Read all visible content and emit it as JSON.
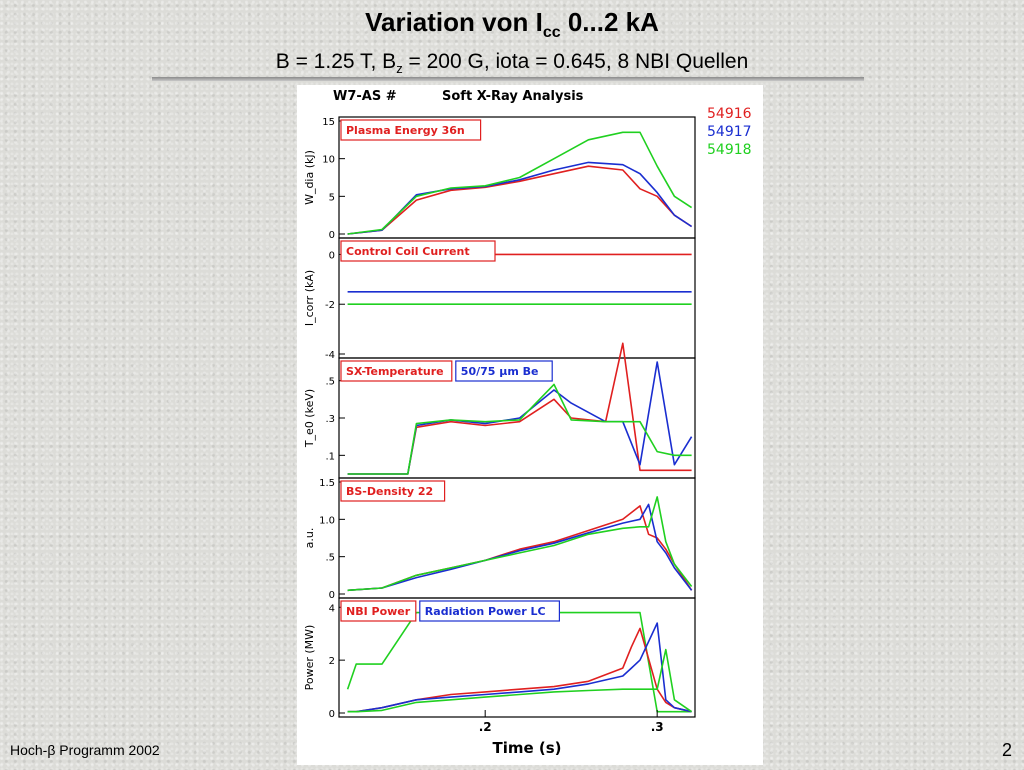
{
  "slide": {
    "title_main": "Variation von I",
    "title_sub": "cc",
    "title_end": " 0...2 kA",
    "subtitle_a": "B = 1.25 T, B",
    "subtitle_sub": "z",
    "subtitle_b": " = 200 G, iota = 0.645, 8 NBI Quellen",
    "footer_left": "Hoch-β Programm 2002",
    "page_number": "2"
  },
  "figure": {
    "header_left": "W7-AS #",
    "header_right": "Soft X-Ray Analysis",
    "xlabel": "Time (s)",
    "xticks": [
      ".2",
      ".3"
    ],
    "shots": [
      {
        "name": "54916",
        "color": "#e02020"
      },
      {
        "name": "54917",
        "color": "#1a2ed0"
      },
      {
        "name": "54918",
        "color": "#20d020"
      }
    ]
  },
  "chart_data": [
    {
      "type": "line",
      "title": "Plasma Energy  36n",
      "ylabel": "W_dia (kJ)",
      "x": [
        0.12,
        0.14,
        0.16,
        0.18,
        0.2,
        0.22,
        0.24,
        0.26,
        0.28,
        0.29,
        0.3,
        0.31,
        0.32
      ],
      "ylim": [
        0,
        15
      ],
      "yticks": [
        "15",
        "10",
        "5",
        "0"
      ],
      "series": [
        {
          "name": "54916",
          "values": [
            0,
            0.5,
            4.5,
            5.8,
            6.2,
            7,
            8,
            9,
            8.5,
            6,
            5,
            2.5,
            1
          ]
        },
        {
          "name": "54917",
          "values": [
            0,
            0.5,
            5.2,
            6,
            6.3,
            7.2,
            8.5,
            9.5,
            9.2,
            8,
            5.5,
            2.5,
            1
          ]
        },
        {
          "name": "54918",
          "values": [
            0,
            0.6,
            5,
            6.1,
            6.4,
            7.5,
            10,
            12.5,
            13.5,
            13.5,
            9,
            5,
            3.5
          ]
        }
      ]
    },
    {
      "type": "line",
      "title": "Control Coil Current",
      "ylabel": "I_corr (kA)",
      "x": [
        0.12,
        0.32
      ],
      "ylim": [
        -4,
        0.5
      ],
      "yticks": [
        "0",
        "-2",
        "-4"
      ],
      "series": [
        {
          "name": "54916",
          "values": [
            0,
            0
          ]
        },
        {
          "name": "54917",
          "values": [
            -1.5,
            -1.5
          ]
        },
        {
          "name": "54918",
          "values": [
            -2,
            -2
          ]
        }
      ]
    },
    {
      "type": "line",
      "title": "SX-Temperature",
      "annotation": "50/75  μm Be",
      "ylabel": "T_e0 (keV)",
      "x": [
        0.12,
        0.14,
        0.155,
        0.16,
        0.18,
        0.2,
        0.22,
        0.24,
        0.25,
        0.27,
        0.28,
        0.29,
        0.3,
        0.31,
        0.32
      ],
      "ylim": [
        0,
        0.6
      ],
      "yticks": [
        ".5",
        ".3",
        ".1"
      ],
      "series": [
        {
          "name": "54916",
          "values": [
            0,
            0,
            0,
            0.25,
            0.28,
            0.26,
            0.28,
            0.4,
            0.3,
            0.28,
            0.7,
            0.02,
            0.02,
            0.02,
            0.02
          ]
        },
        {
          "name": "54917",
          "values": [
            0,
            0,
            0,
            0.26,
            0.29,
            0.27,
            0.3,
            0.45,
            0.38,
            0.28,
            0.28,
            0.05,
            0.6,
            0.05,
            0.2
          ]
        },
        {
          "name": "54918",
          "values": [
            0,
            0,
            0,
            0.27,
            0.29,
            0.28,
            0.29,
            0.48,
            0.29,
            0.28,
            0.28,
            0.28,
            0.12,
            0.1,
            0.1
          ]
        }
      ]
    },
    {
      "type": "line",
      "title": "BS-Density 22",
      "ylabel": "a.u.",
      "x": [
        0.12,
        0.14,
        0.16,
        0.18,
        0.2,
        0.22,
        0.24,
        0.26,
        0.28,
        0.29,
        0.295,
        0.3,
        0.305,
        0.31,
        0.32
      ],
      "ylim": [
        0,
        1.5
      ],
      "yticks": [
        "1.5",
        "1.0",
        ".5",
        "0"
      ],
      "series": [
        {
          "name": "54916",
          "values": [
            0.05,
            0.08,
            0.25,
            0.35,
            0.45,
            0.6,
            0.7,
            0.85,
            1.0,
            1.18,
            0.8,
            0.75,
            0.6,
            0.4,
            0.05
          ]
        },
        {
          "name": "54917",
          "values": [
            0.05,
            0.08,
            0.22,
            0.33,
            0.45,
            0.58,
            0.68,
            0.82,
            0.95,
            1.0,
            1.2,
            0.7,
            0.55,
            0.35,
            0.05
          ]
        },
        {
          "name": "54918",
          "values": [
            0.05,
            0.08,
            0.25,
            0.35,
            0.45,
            0.55,
            0.65,
            0.8,
            0.88,
            0.9,
            0.9,
            1.3,
            0.7,
            0.4,
            0.1
          ]
        }
      ]
    },
    {
      "type": "line",
      "title": "NBI Power",
      "annotation": "Radiation Power LC",
      "ylabel": "Power (MW)",
      "x": [
        0.12,
        0.125,
        0.14,
        0.16,
        0.18,
        0.2,
        0.22,
        0.24,
        0.26,
        0.28,
        0.285,
        0.29,
        0.3,
        0.305,
        0.31,
        0.32
      ],
      "ylim": [
        0,
        4.2
      ],
      "yticks": [
        "4",
        "2",
        "0"
      ],
      "series": [
        {
          "name": "54916 NBI",
          "values": [
            0.9,
            1.85,
            1.85,
            3.8,
            3.8,
            3.8,
            3.8,
            3.8,
            3.8,
            3.8,
            3.8,
            3.8,
            0.05,
            0.05,
            0.05,
            0.05
          ]
        },
        {
          "name": "54916",
          "values": [
            0.05,
            0.05,
            0.2,
            0.5,
            0.7,
            0.8,
            0.9,
            1.0,
            1.2,
            1.7,
            2.5,
            3.2,
            0.9,
            0.4,
            0.2,
            0.05
          ]
        },
        {
          "name": "54917",
          "values": [
            0.05,
            0.05,
            0.2,
            0.5,
            0.6,
            0.7,
            0.8,
            0.9,
            1.1,
            1.4,
            1.7,
            2.0,
            3.4,
            0.5,
            0.2,
            0.05
          ]
        },
        {
          "name": "54918",
          "values": [
            0.05,
            0.05,
            0.1,
            0.4,
            0.5,
            0.6,
            0.7,
            0.8,
            0.85,
            0.9,
            0.9,
            0.9,
            0.9,
            2.4,
            0.5,
            0.05
          ]
        }
      ]
    }
  ]
}
